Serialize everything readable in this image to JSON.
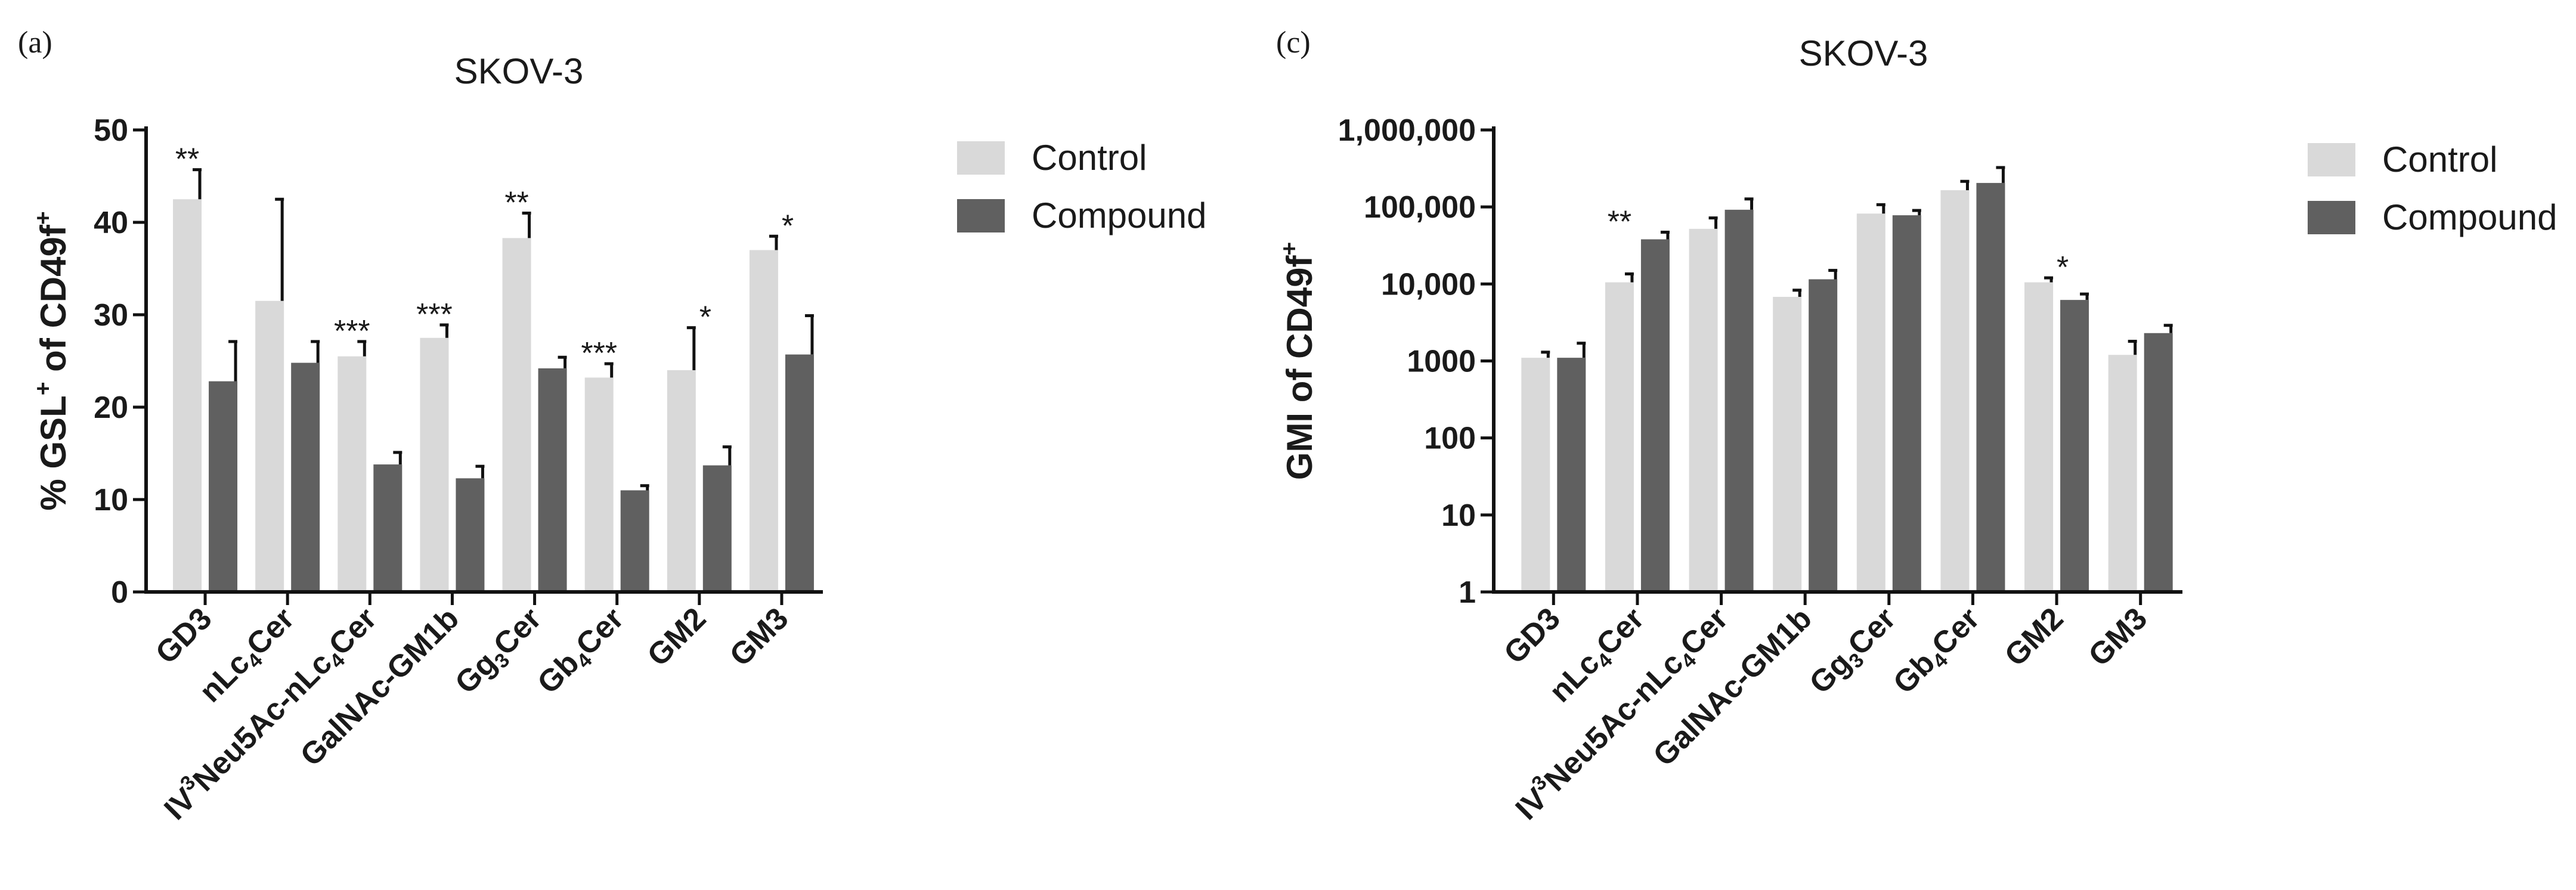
{
  "colors": {
    "control": "#d9d9d9",
    "compound": "#606060",
    "axis": "#111111",
    "error": "#111111"
  },
  "chart_data": [
    {
      "panel": "(a)",
      "type": "bar",
      "title": "SKOV-3",
      "ylabel": "% GSL⁺ of CD49f⁺",
      "ylim": [
        0,
        50
      ],
      "yscale": "linear",
      "yticks": [
        "0",
        "10",
        "20",
        "30",
        "40",
        "50"
      ],
      "legend_position": "top-right",
      "categories": [
        "GD3",
        "nLc₄Cer",
        "IV³Neu5Ac-nLc₄Cer",
        "GalNAc-GM1b",
        "Gg₃Cer",
        "Gb₄Cer",
        "GM2",
        "GM3"
      ],
      "series": [
        {
          "name": "Control",
          "values": [
            42.5,
            31.5,
            25.5,
            27.5,
            38.3,
            23.2,
            24.0,
            37.0
          ],
          "errors": [
            3.2,
            11.0,
            1.6,
            1.4,
            2.7,
            1.5,
            4.6,
            1.5
          ]
        },
        {
          "name": "Compound",
          "values": [
            22.8,
            24.8,
            13.8,
            12.3,
            24.2,
            11.0,
            13.7,
            25.7
          ],
          "errors": [
            4.3,
            2.3,
            1.3,
            1.3,
            1.2,
            0.5,
            2.0,
            4.2
          ]
        }
      ],
      "significance": [
        "**",
        "",
        "***",
        "***",
        "**",
        "***",
        "*",
        "*"
      ]
    },
    {
      "panel": "(c)",
      "type": "bar",
      "title": "SKOV-3",
      "ylabel": "GMI  of CD49f⁺",
      "ylim": [
        1,
        1000000
      ],
      "yscale": "log",
      "yticks": [
        "1",
        "10",
        "100",
        "1000",
        "10,000",
        "100,000",
        "1,000,000"
      ],
      "legend_position": "top-right",
      "categories": [
        "GD3",
        "nLc₄Cer",
        "IV³Neu5Ac-nLc₄Cer",
        "GalNAc-GM1b",
        "Gg₃Cer",
        "Gb₄Cer",
        "GM2",
        "GM3"
      ],
      "series": [
        {
          "name": "Control",
          "values": [
            1100,
            10500,
            52000,
            6800,
            82000,
            165000,
            10500,
            1200
          ],
          "errors": [
            200,
            3000,
            20000,
            1500,
            25000,
            50000,
            1500,
            600
          ]
        },
        {
          "name": "Compound",
          "values": [
            1100,
            38000,
            92000,
            11500,
            78000,
            205000,
            6200,
            2300
          ],
          "errors": [
            600,
            9000,
            35000,
            3500,
            12000,
            120000,
            1200,
            600
          ]
        }
      ],
      "significance": [
        "",
        "**",
        "",
        "",
        "",
        "",
        "*",
        ""
      ]
    }
  ]
}
